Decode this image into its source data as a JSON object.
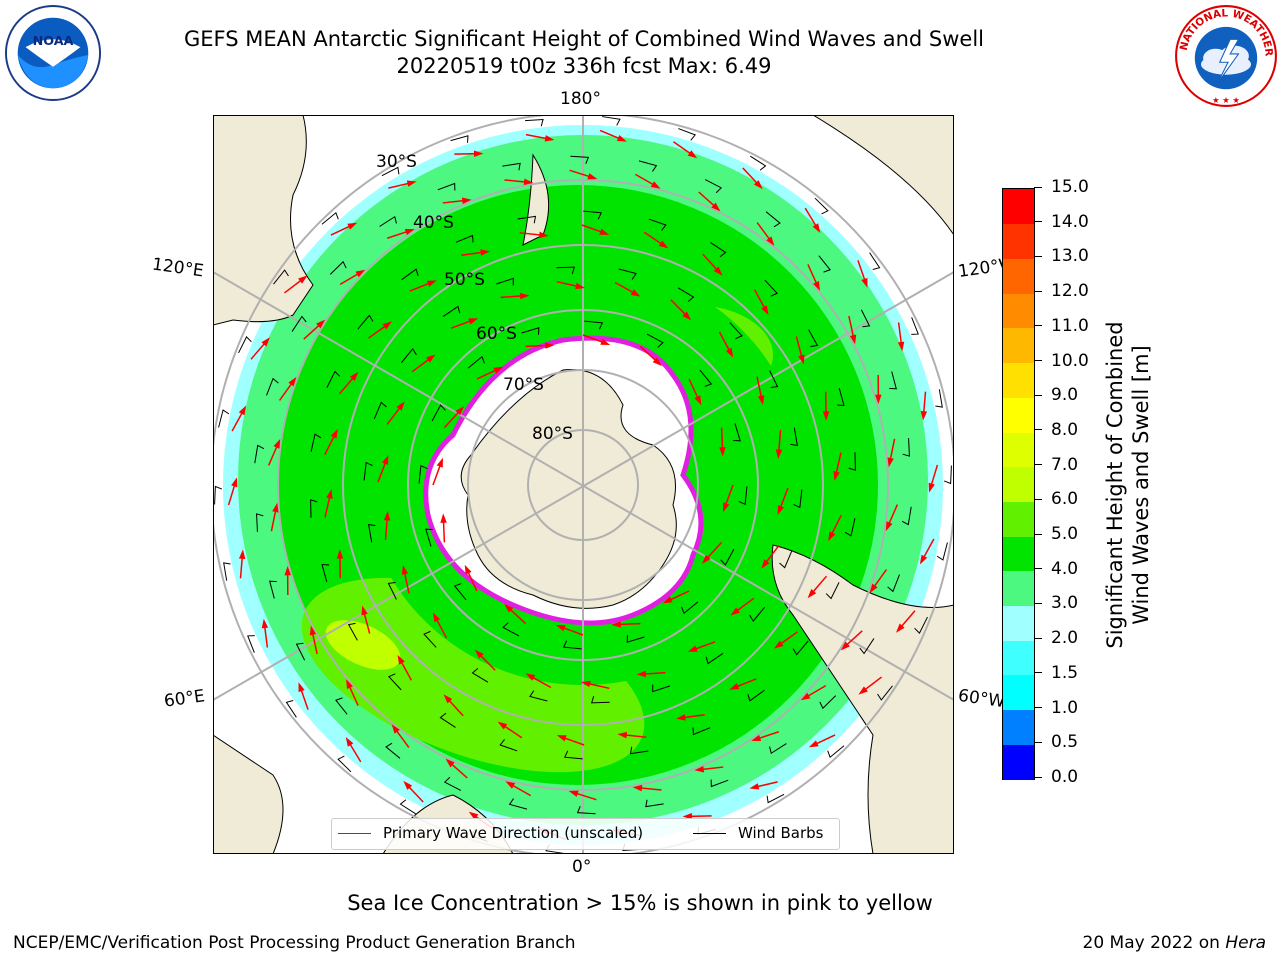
{
  "title_line1": "GEFS MEAN Antarctic Significant Height of Combined Wind Waves and Swell",
  "title_line2": "20220519 t00z 336h fcst   Max: 6.49",
  "logos": {
    "left": "noaa-logo",
    "right": "nws-logo",
    "left_text": "NOAA",
    "right_text": "NATIONAL WEATHER SERVICE"
  },
  "map": {
    "projection": "south-polar-stereographic",
    "lon_labels": {
      "top": "180°",
      "bottom": "0°",
      "upper_left": "120°E",
      "upper_right": "120°W",
      "lower_left": "60°E",
      "lower_right": "60°W"
    },
    "lat_labels": [
      "30°S",
      "40°S",
      "50°S",
      "60°S",
      "70°S",
      "80°S"
    ],
    "colors": {
      "land": "#efebd7",
      "ice_shelf": "#ffffff",
      "sea_ice_edge": "#e020e0",
      "wave_arrow": "#ff0000",
      "wind_barb": "#000000",
      "graticule": "#b0b0b0"
    }
  },
  "legend": {
    "wave_label": "Primary Wave Direction (unscaled)",
    "wind_label": "Wind Barbs"
  },
  "colorbar": {
    "label_line1": "Significant Height of Combined",
    "label_line2": "Wind Waves and Swell [m]",
    "ticks": [
      "0.0",
      "0.5",
      "1.0",
      "1.5",
      "2.0",
      "3.0",
      "4.0",
      "5.0",
      "6.0",
      "7.0",
      "8.0",
      "9.0",
      "10.0",
      "11.0",
      "12.0",
      "13.0",
      "14.0",
      "15.0"
    ],
    "colors": [
      "#0000ff",
      "#0080ff",
      "#00ffff",
      "#40ffff",
      "#a0ffff",
      "#4cf880",
      "#00e400",
      "#60f000",
      "#c0ff00",
      "#ddff00",
      "#ffff00",
      "#ffe000",
      "#ffb800",
      "#ff8c00",
      "#ff6600",
      "#ff3300",
      "#ff0000"
    ]
  },
  "subcaption": "Sea Ice Concentration > 15% is shown in pink to yellow",
  "credit": "NCEP/EMC/Verification Post Processing Product Generation Branch",
  "date_text": "20 May 2022 on ",
  "machine": "Hera"
}
